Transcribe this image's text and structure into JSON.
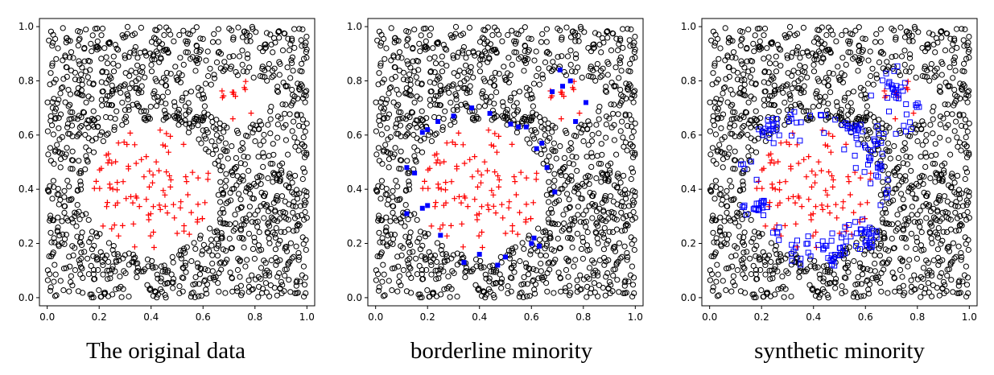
{
  "chart_data": [
    {
      "type": "scatter",
      "title": "The original data",
      "xlim": [
        -0.03,
        1.03
      ],
      "ylim": [
        -0.03,
        1.03
      ],
      "xticks": [
        "0.0",
        "0.2",
        "0.4",
        "0.6",
        "0.8",
        "1.0"
      ],
      "yticks": [
        "0.0",
        "0.2",
        "0.4",
        "0.6",
        "0.8",
        "1.0"
      ],
      "grid": false,
      "series": [
        {
          "role": "majority",
          "marker": "open-circle",
          "color": "#000000",
          "count": 1300
        },
        {
          "role": "minority",
          "marker": "red-plus",
          "color": "#ff0000",
          "count": 110
        }
      ],
      "minority_region": {
        "main": {
          "center": [
            0.4,
            0.4
          ],
          "radius": [
            0.26,
            0.25
          ]
        },
        "upper_arm": {
          "center": [
            0.74,
            0.73
          ],
          "radius": [
            0.12,
            0.09
          ]
        }
      }
    },
    {
      "type": "scatter",
      "title": "borderline minority",
      "xlim": [
        -0.03,
        1.03
      ],
      "ylim": [
        -0.03,
        1.03
      ],
      "xticks": [
        "0.0",
        "0.2",
        "0.4",
        "0.6",
        "0.8",
        "1.0"
      ],
      "yticks": [
        "0.0",
        "0.2",
        "0.4",
        "0.6",
        "0.8",
        "1.0"
      ],
      "grid": false,
      "series": [
        {
          "role": "majority",
          "marker": "open-circle",
          "color": "#000000",
          "count": 1300
        },
        {
          "role": "minority",
          "marker": "red-plus",
          "color": "#ff0000",
          "count": 110
        },
        {
          "role": "borderline",
          "marker": "filled-square",
          "color": "#0000ff"
        }
      ],
      "borderline_points": [
        [
          0.12,
          0.31
        ],
        [
          0.18,
          0.33
        ],
        [
          0.2,
          0.34
        ],
        [
          0.12,
          0.48
        ],
        [
          0.15,
          0.46
        ],
        [
          0.18,
          0.61
        ],
        [
          0.2,
          0.62
        ],
        [
          0.25,
          0.23
        ],
        [
          0.24,
          0.65
        ],
        [
          0.3,
          0.67
        ],
        [
          0.34,
          0.13
        ],
        [
          0.37,
          0.7
        ],
        [
          0.4,
          0.16
        ],
        [
          0.44,
          0.68
        ],
        [
          0.47,
          0.12
        ],
        [
          0.5,
          0.15
        ],
        [
          0.52,
          0.64
        ],
        [
          0.55,
          0.63
        ],
        [
          0.58,
          0.63
        ],
        [
          0.6,
          0.2
        ],
        [
          0.61,
          0.22
        ],
        [
          0.63,
          0.19
        ],
        [
          0.62,
          0.55
        ],
        [
          0.64,
          0.57
        ],
        [
          0.66,
          0.48
        ],
        [
          0.69,
          0.39
        ],
        [
          0.68,
          0.76
        ],
        [
          0.71,
          0.84
        ],
        [
          0.72,
          0.78
        ],
        [
          0.75,
          0.8
        ],
        [
          0.77,
          0.65
        ],
        [
          0.81,
          0.72
        ]
      ]
    },
    {
      "type": "scatter",
      "title": "synthetic minority",
      "xlim": [
        -0.03,
        1.03
      ],
      "ylim": [
        -0.03,
        1.03
      ],
      "xticks": [
        "0.0",
        "0.2",
        "0.4",
        "0.6",
        "0.8",
        "1.0"
      ],
      "yticks": [
        "0.0",
        "0.2",
        "0.4",
        "0.6",
        "0.8",
        "1.0"
      ],
      "grid": false,
      "series": [
        {
          "role": "majority",
          "marker": "open-circle",
          "color": "#000000",
          "count": 1300
        },
        {
          "role": "minority",
          "marker": "red-plus",
          "color": "#ff0000",
          "count": 110
        },
        {
          "role": "synthetic",
          "marker": "open-square",
          "color": "#0000ff",
          "count": 220
        }
      ]
    }
  ]
}
